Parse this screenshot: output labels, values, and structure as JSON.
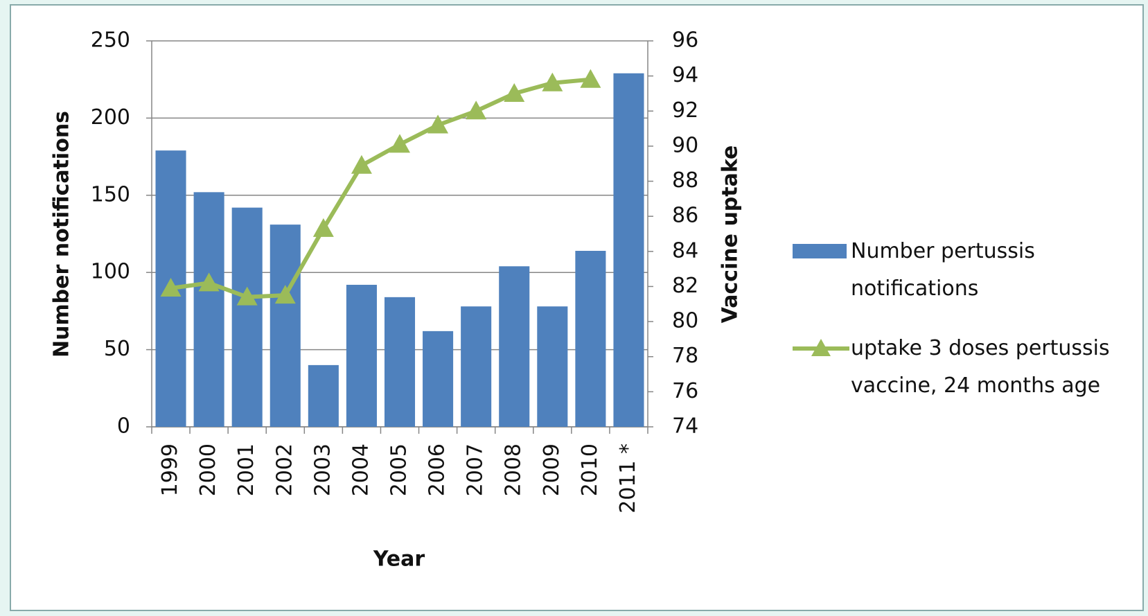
{
  "chart_data": {
    "type": "bar-line",
    "x_label": "Year",
    "y_label": "Number notifications",
    "y2_label": "Vaccine uptake",
    "categories": [
      "1999",
      "2000",
      "2001",
      "2002",
      "2003",
      "2004",
      "2005",
      "2006",
      "2007",
      "2008",
      "2009",
      "2010",
      "2011 *"
    ],
    "series": [
      {
        "name": "Number pertussis notifications",
        "type": "bar",
        "color": "#4f81bd",
        "values": [
          179,
          152,
          142,
          131,
          40,
          92,
          84,
          62,
          78,
          104,
          78,
          114,
          229
        ]
      },
      {
        "name": "uptake 3 doses pertussis vaccine, 24 months age",
        "type": "line",
        "color": "#9bbb59",
        "axis": "y2",
        "values": [
          81.9,
          82.2,
          81.4,
          81.5,
          85.3,
          88.9,
          90.1,
          91.2,
          92,
          93,
          93.6,
          93.8,
          null
        ]
      }
    ],
    "ylim": [
      0,
      250
    ],
    "yticks": [
      0,
      50,
      100,
      150,
      200,
      250
    ],
    "y2lim": [
      74,
      96
    ],
    "y2ticks": [
      74,
      76,
      78,
      80,
      82,
      84,
      86,
      88,
      90,
      92,
      94,
      96
    ],
    "grid": true,
    "legend": "right"
  }
}
